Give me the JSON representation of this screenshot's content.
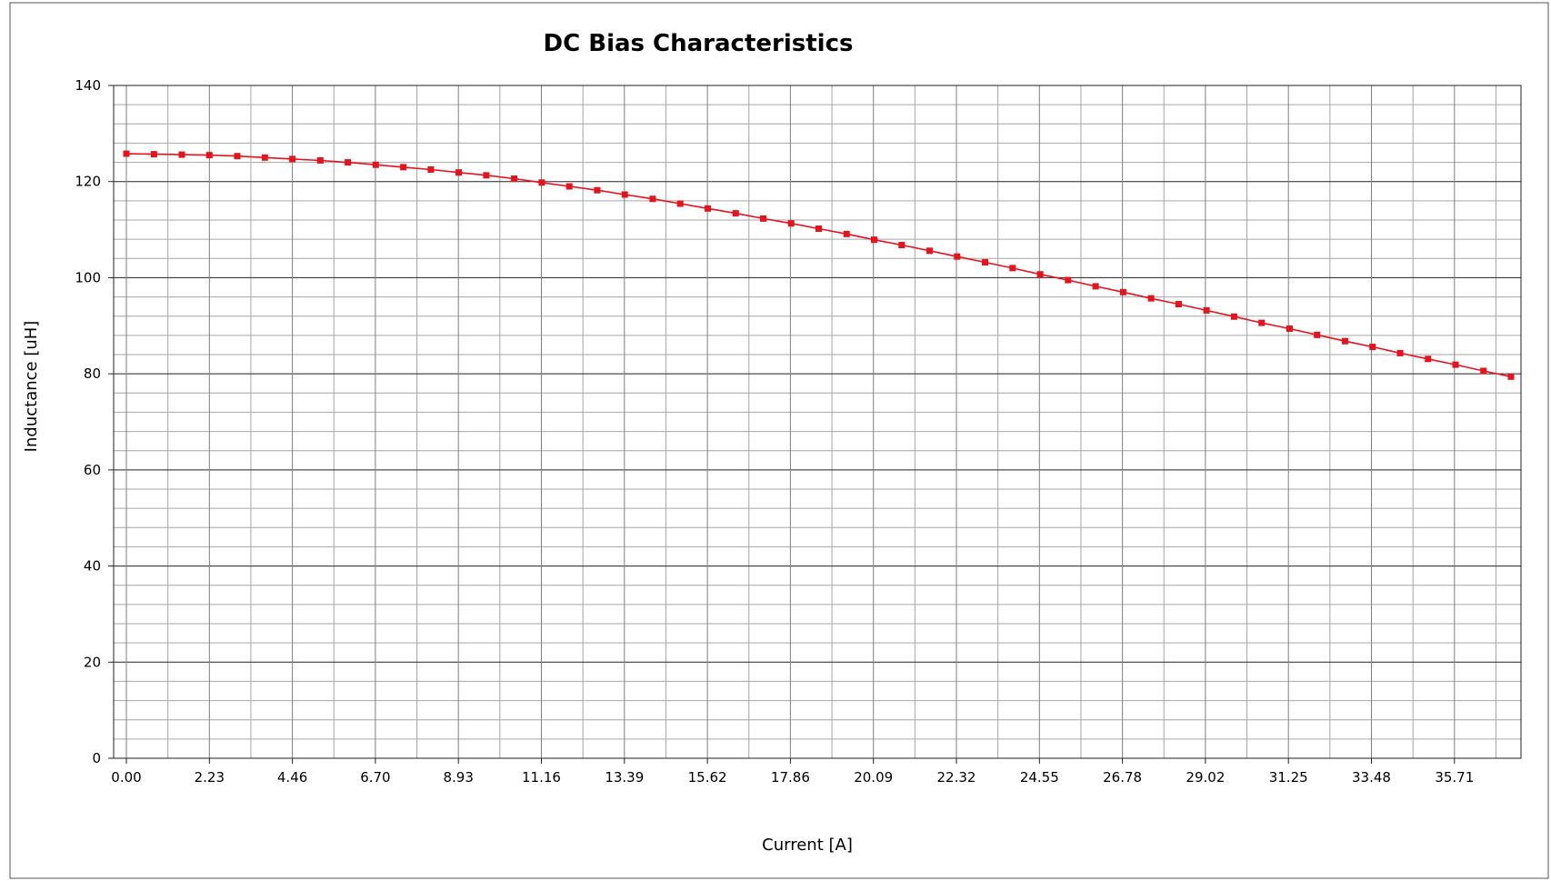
{
  "chart_data": {
    "type": "line",
    "title": "DC Bias Characteristics",
    "xlabel": "Current [A]",
    "ylabel": "Inductance [uH]",
    "xlim": [
      0,
      38.5
    ],
    "ylim": [
      0,
      140
    ],
    "x_ticks": [
      "0.00",
      "2.23",
      "4.46",
      "6.70",
      "8.93",
      "11.16",
      "13.39",
      "15.62",
      "17.86",
      "20.09",
      "22.32",
      "24.55",
      "26.78",
      "29.02",
      "31.25",
      "33.48",
      "35.71"
    ],
    "y_ticks": [
      "0",
      "20",
      "40",
      "60",
      "80",
      "100",
      "120",
      "140"
    ],
    "grid": true,
    "colors": {
      "series": "#e8121c",
      "major_grid": "#222222",
      "minor_grid": "#a6a6a6"
    },
    "series": [
      {
        "x": [
          0.0,
          0.74,
          1.49,
          2.23,
          2.98,
          3.72,
          4.46,
          5.21,
          5.95,
          6.7,
          7.44,
          8.18,
          8.93,
          9.67,
          10.42,
          11.16,
          11.9,
          12.65,
          13.39,
          14.14,
          14.88,
          15.62,
          16.37,
          17.11,
          17.86,
          18.6,
          19.35,
          20.09,
          20.83,
          21.58,
          22.32,
          23.07,
          23.81,
          24.55,
          25.3,
          26.04,
          26.78,
          27.53,
          28.27,
          29.02,
          29.76,
          30.5,
          31.25,
          31.99,
          32.74,
          33.48,
          34.22,
          34.97,
          35.71,
          36.46,
          37.2
        ],
        "y": [
          125.8,
          125.7,
          125.6,
          125.5,
          125.3,
          125.0,
          124.7,
          124.4,
          124.0,
          123.5,
          123.0,
          122.5,
          121.9,
          121.3,
          120.6,
          119.8,
          119.0,
          118.2,
          117.3,
          116.4,
          115.4,
          114.4,
          113.4,
          112.3,
          111.3,
          110.2,
          109.1,
          107.9,
          106.8,
          105.6,
          104.4,
          103.2,
          102.0,
          100.7,
          99.5,
          98.2,
          97.0,
          95.7,
          94.5,
          93.2,
          91.9,
          90.6,
          89.4,
          88.1,
          86.8,
          85.6,
          84.3,
          83.1,
          81.9,
          80.6,
          79.4
        ]
      }
    ]
  }
}
